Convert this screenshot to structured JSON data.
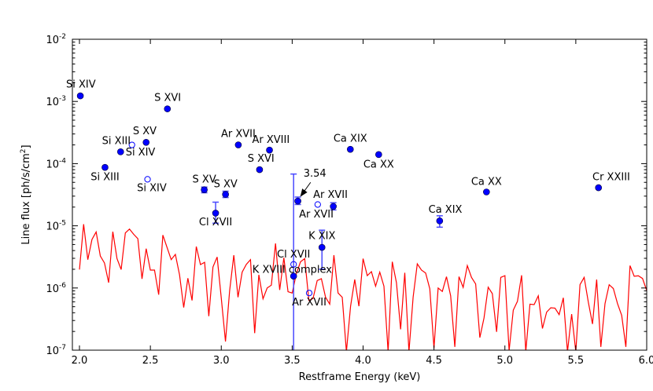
{
  "chart_data": {
    "type": "scatter",
    "xlabel": "Restframe Energy (keV)",
    "ylabel": "Line flux [ph/s/cm",
    "ylabel_sup": "2",
    "ylabel_end": "]",
    "xlim": [
      1.95,
      6.0
    ],
    "ylim": [
      1e-07,
      0.01
    ],
    "yscale": "log",
    "grid": false,
    "xticks": [
      "2.0",
      "2.5",
      "3.0",
      "3.5",
      "4.0",
      "4.5",
      "5.0",
      "5.5",
      "6.0"
    ],
    "yticks": [
      {
        "base": "10",
        "exp": "-7"
      },
      {
        "base": "10",
        "exp": "-6"
      },
      {
        "base": "10",
        "exp": "-5"
      },
      {
        "base": "10",
        "exp": "-4"
      },
      {
        "base": "10",
        "exp": "-3"
      },
      {
        "base": "10",
        "exp": "-2"
      }
    ],
    "colors": {
      "points": "#0000ff",
      "errorbars": "#4a4aff",
      "noise_line": "#ff0000"
    },
    "filled_points": [
      {
        "x": 2.006,
        "y": 0.00123
      },
      {
        "x": 2.62,
        "y": 0.00076
      },
      {
        "x": 2.47,
        "y": 0.00022
      },
      {
        "x": 2.29,
        "y": 0.000155
      },
      {
        "x": 2.18,
        "y": 8.7e-05
      },
      {
        "x": 3.12,
        "y": 0.0002
      },
      {
        "x": 3.34,
        "y": 0.000165
      },
      {
        "x": 3.27,
        "y": 8e-05
      },
      {
        "x": 3.91,
        "y": 0.00017
      },
      {
        "x": 4.11,
        "y": 0.00014
      },
      {
        "x": 2.88,
        "y": 3.8e-05,
        "ylo": 3.4e-05,
        "yhi": 4.2e-05
      },
      {
        "x": 3.03,
        "y": 3.2e-05,
        "ylo": 2.85e-05,
        "yhi": 3.6e-05
      },
      {
        "x": 2.96,
        "y": 1.6e-05,
        "ylo": 1.1e-05,
        "yhi": 2.4e-05
      },
      {
        "x": 3.54,
        "y": 2.5e-05,
        "ylo": 2.2e-05,
        "yhi": 2.9e-05
      },
      {
        "x": 3.79,
        "y": 2.05e-05,
        "ylo": 1.8e-05,
        "yhi": 2.35e-05
      },
      {
        "x": 3.71,
        "y": 4.5e-06,
        "ylo": 2e-06,
        "yhi": 8.5e-06
      },
      {
        "x": 3.51,
        "y": 1.55e-06,
        "ylo": 1e-08,
        "yhi": 6.8e-05
      },
      {
        "x": 4.87,
        "y": 3.5e-05
      },
      {
        "x": 4.54,
        "y": 1.2e-05,
        "ylo": 9.5e-06,
        "yhi": 1.45e-05
      },
      {
        "x": 5.66,
        "y": 4.1e-05
      }
    ],
    "open_points": [
      {
        "x": 2.37,
        "y": 0.0002
      },
      {
        "x": 2.48,
        "y": 5.6e-05
      },
      {
        "x": 3.68,
        "y": 2.2e-05
      },
      {
        "x": 3.51,
        "y": 2.4e-06
      },
      {
        "x": 3.62,
        "y": 8.3e-07
      }
    ],
    "line_labels": [
      {
        "text": "Si XIV",
        "x": 2.01,
        "y": 0.00185
      },
      {
        "text": "S XVI",
        "x": 2.622,
        "y": 0.00113
      },
      {
        "text": "S XV",
        "x": 2.46,
        "y": 0.00033
      },
      {
        "text": "Si XIII",
        "x": 2.26,
        "y": 0.00023
      },
      {
        "text": "Si XIV",
        "x": 2.43,
        "y": 0.00015
      },
      {
        "text": "Si XIII",
        "x": 2.18,
        "y": 6e-05
      },
      {
        "text": "Si XIV",
        "x": 2.51,
        "y": 4e-05
      },
      {
        "text": "Ar XVII",
        "x": 3.12,
        "y": 0.000295
      },
      {
        "text": "Ar XVIII",
        "x": 3.35,
        "y": 0.00024
      },
      {
        "text": "S XVI",
        "x": 3.28,
        "y": 0.000118
      },
      {
        "text": "Ca XIX",
        "x": 3.91,
        "y": 0.00025
      },
      {
        "text": "Ca XX",
        "x": 4.11,
        "y": 9.5e-05
      },
      {
        "text": "S XV",
        "x": 2.88,
        "y": 5.5e-05
      },
      {
        "text": "S XV",
        "x": 3.03,
        "y": 4.6e-05
      },
      {
        "text": "Cl XVII",
        "x": 2.96,
        "y": 1.12e-05
      },
      {
        "text": "Ar XVII",
        "x": 3.77,
        "y": 3.1e-05
      },
      {
        "text": "Ar XVII",
        "x": 3.67,
        "y": 1.5e-05
      },
      {
        "text": "K XIX",
        "x": 3.71,
        "y": 6.8e-06
      },
      {
        "text": "Cl XVII",
        "x": 3.51,
        "y": 3.4e-06
      },
      {
        "text": "K XVIII complex",
        "x": 3.5,
        "y": 1.95e-06
      },
      {
        "text": "Ar XVII",
        "x": 3.62,
        "y": 5.8e-07
      },
      {
        "text": "Ca XX",
        "x": 4.87,
        "y": 5e-05
      },
      {
        "text": "Ca XIX",
        "x": 4.58,
        "y": 1.8e-05
      },
      {
        "text": "Cr XXIII",
        "x": 5.75,
        "y": 6e-05
      }
    ],
    "annotation": {
      "text": "3.54",
      "x": 3.66,
      "y": 6.8e-05,
      "arrow_from": {
        "x": 3.63,
        "y": 5e-05
      },
      "arrow_to": {
        "x": 3.56,
        "y": 3e-05
      }
    },
    "noise_line": {
      "x_first": 2.0,
      "x_last": 6.0,
      "y": [
        1.98e-06,
        1.06e-05,
        2.86e-06,
        6.03e-06,
        7.98e-06,
        3.27e-06,
        2.52e-06,
        1.22e-06,
        8.05e-06,
        2.97e-06,
        1.98e-06,
        7.67e-06,
        8.87e-06,
        7.31e-06,
        6.2e-06,
        1.4e-06,
        4.29e-06,
        1.94e-06,
        1.94e-06,
        7.8e-07,
        7.1e-06,
        4.5e-06,
        2.86e-06,
        3.47e-06,
        1.63e-06,
        4.85e-07,
        1.44e-06,
        6.3e-07,
        4.64e-06,
        2.38e-06,
        2.59e-06,
        3.52e-07,
        2.18e-06,
        3.15e-06,
        6.8e-07,
        1.38e-07,
        9.1e-07,
        3.37e-06,
        7.1e-07,
        1.8e-06,
        2.4e-06,
        2.86e-06,
        1.88e-07,
        1.63e-06,
        6.7e-07,
        1e-06,
        1.11e-06,
        5.2e-06,
        9.3e-07,
        3.06e-06,
        8.7e-07,
        8.3e-07,
        1.71e-06,
        2.64e-06,
        2.97e-06,
        6.3e-07,
        6.8e-07,
        1.32e-06,
        1.41e-06,
        7.1e-07,
        5.5e-07,
        3.37e-06,
        8.3e-07,
        7.1e-07,
        5e-08,
        5.1e-07,
        1.37e-06,
        5.1e-07,
        2.97e-06,
        1.58e-06,
        1.83e-06,
        1.07e-06,
        1.8e-06,
        1.07e-06,
        5e-08,
        2.64e-06,
        1.22e-06,
        2.17e-07,
        1.76e-06,
        5e-08,
        7.1e-07,
        2.45e-06,
        1.94e-06,
        1.74e-06,
        9.7e-07,
        1.08e-07,
        1e-06,
        8.8e-07,
        1.52e-06,
        7.5e-07,
        1.13e-07,
        1.52e-06,
        1.02e-06,
        2.29e-06,
        1.48e-06,
        1.16e-06,
        1.59e-07,
        3.29e-07,
        1.03e-06,
        8.1e-07,
        1.97e-07,
        1.48e-06,
        1.58e-06,
        9.8e-08,
        4.4e-07,
        6.1e-07,
        1.6e-06,
        9.5e-08,
        5.5e-07,
        5.4e-07,
        7.5e-07,
        2.23e-07,
        4.1e-07,
        4.8e-07,
        4.75e-07,
        3.73e-07,
        6.95e-07,
        5e-08,
        3.8e-07,
        5e-08,
        1.13e-06,
        1.48e-06,
        5.9e-07,
        2.63e-07,
        1.37e-06,
        1.13e-07,
        5.6e-07,
        1.13e-06,
        9.8e-07,
        5.6e-07,
        3.63e-07,
        1.13e-07,
        2.29e-06,
        1.54e-06,
        1.57e-06,
        1.42e-06,
        9.1e-07
      ]
    }
  }
}
